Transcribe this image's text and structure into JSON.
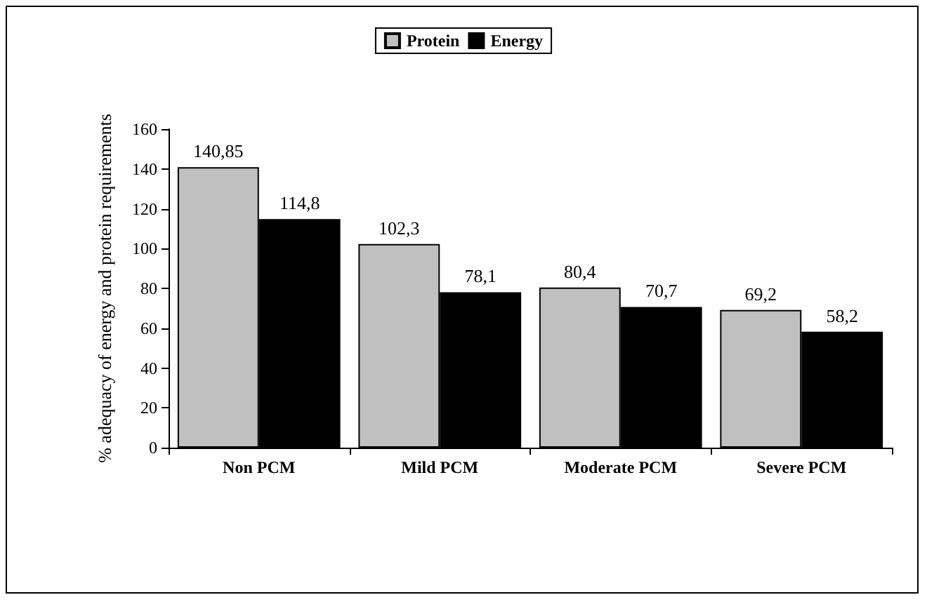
{
  "chart_data": {
    "type": "bar",
    "ylabel": "% adequacy of energy and protein requirements",
    "categories": [
      "Non PCM",
      "Mild PCM",
      "Moderate PCM",
      "Severe PCM"
    ],
    "series": [
      {
        "name": "Protein",
        "color": "#c0c0c0",
        "values": [
          140.85,
          102.3,
          80.4,
          69.2
        ],
        "value_labels": [
          "140,85",
          "102,3",
          "80,4",
          "69,2"
        ]
      },
      {
        "name": "Energy",
        "color": "#000000",
        "values": [
          114.8,
          78.1,
          70.7,
          58.2
        ],
        "value_labels": [
          "114,8",
          "78,1",
          "70,7",
          "58,2"
        ]
      }
    ],
    "ylim": [
      0,
      160
    ],
    "yticks": [
      0,
      20,
      40,
      60,
      80,
      100,
      120,
      140,
      160
    ],
    "grid": false,
    "legend": "top"
  }
}
